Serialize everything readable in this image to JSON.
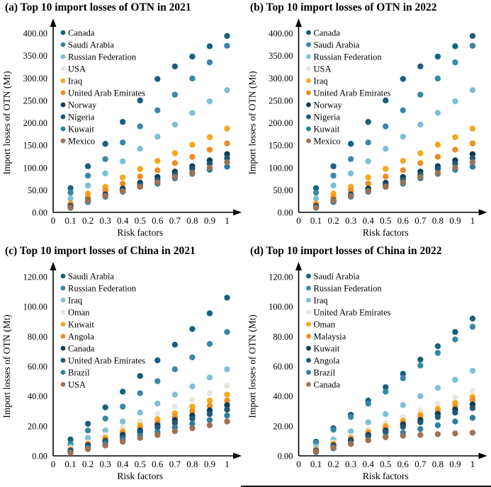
{
  "figure": {
    "background": "#ffffff",
    "border_color": "#151515"
  },
  "chart_data": [
    {
      "id": "a",
      "type": "scatter",
      "title": "(a) Top 10 import losses of OTN in 2021",
      "xlabel": "Risk factors",
      "ylabel": "Import losses of OTN (Mt)",
      "grid": false,
      "legend_position": "top-left",
      "x": [
        0.1,
        0.2,
        0.3,
        0.4,
        0.5,
        0.6,
        0.7,
        0.8,
        0.9,
        1.0
      ],
      "xticks": [
        "0",
        "0.1",
        "0.2",
        "0.3",
        "0.4",
        "0.5",
        "0.6",
        "0.7",
        "0.8",
        "0.9",
        "1"
      ],
      "ylim": [
        0,
        400
      ],
      "yticks": [
        "0.00",
        "50.00",
        "100.00",
        "150.00",
        "200.00",
        "250.00",
        "300.00",
        "350.00",
        "400.00"
      ],
      "series": [
        {
          "name": "Canada",
          "color": "#17607C",
          "values": [
            54,
            103,
            153,
            202,
            250,
            298,
            326,
            348,
            371,
            394
          ]
        },
        {
          "name": "Saudi Arabia",
          "color": "#3A87A5",
          "values": [
            44,
            82,
            119,
            156,
            192,
            228,
            263,
            299,
            335,
            372
          ]
        },
        {
          "name": "Russian Federation",
          "color": "#7EBFD3",
          "values": [
            31,
            60,
            87,
            114,
            142,
            169,
            196,
            222,
            248,
            273
          ]
        },
        {
          "name": "USA",
          "color": "#EAE6DE",
          "values": [
            12,
            24,
            36,
            48,
            60,
            71,
            83,
            94,
            106,
            117
          ]
        },
        {
          "name": "Iraq",
          "color": "#F5A81C",
          "values": [
            20,
            42,
            57,
            78,
            97,
            115,
            132,
            151,
            168,
            187
          ]
        },
        {
          "name": "United Arab Emirates",
          "color": "#EF8C22",
          "values": [
            17,
            33,
            49,
            64,
            80,
            94,
            110,
            124,
            140,
            154
          ]
        },
        {
          "name": "Norway",
          "color": "#0E3B53",
          "values": [
            14,
            27,
            40,
            53,
            66,
            79,
            91,
            103,
            116,
            130
          ]
        },
        {
          "name": "Nigeria",
          "color": "#1E5876",
          "values": [
            12,
            25,
            37,
            49,
            61,
            73,
            85,
            97,
            109,
            121
          ]
        },
        {
          "name": "Kuwait",
          "color": "#2F7E9E",
          "values": [
            10,
            23,
            35,
            46,
            57,
            64,
            76,
            86,
            95,
            102
          ]
        },
        {
          "name": "Mexico",
          "color": "#9C7257",
          "values": [
            11,
            26,
            37,
            47,
            57,
            67,
            79,
            88,
            100,
            112
          ]
        }
      ]
    },
    {
      "id": "b",
      "type": "scatter",
      "title": "(b) Top 10 import losses of OTN in 2022",
      "xlabel": "Risk factors",
      "ylabel": "Import losses of OTN (Mt)",
      "grid": false,
      "legend_position": "top-left",
      "x": [
        0.1,
        0.2,
        0.3,
        0.4,
        0.5,
        0.6,
        0.7,
        0.8,
        0.9,
        1.0
      ],
      "xticks": [
        "0",
        "0.1",
        "0.2",
        "0.3",
        "0.4",
        "0.5",
        "0.6",
        "0.7",
        "0.8",
        "0.9",
        "1"
      ],
      "ylim": [
        0,
        400
      ],
      "yticks": [
        "0.00",
        "50.00",
        "100.00",
        "150.00",
        "200.00",
        "250.00",
        "300.00",
        "350.00",
        "400.00"
      ],
      "series": [
        {
          "name": "Canada",
          "color": "#17607C",
          "values": [
            54,
            103,
            153,
            202,
            250,
            298,
            326,
            348,
            371,
            394
          ]
        },
        {
          "name": "Saudi Arabia",
          "color": "#3A87A5",
          "values": [
            44,
            82,
            119,
            156,
            192,
            228,
            263,
            299,
            335,
            372
          ]
        },
        {
          "name": "Russian Federation",
          "color": "#7EBFD3",
          "values": [
            31,
            60,
            87,
            114,
            142,
            169,
            196,
            222,
            248,
            273
          ]
        },
        {
          "name": "USA",
          "color": "#EAE6DE",
          "values": [
            12,
            24,
            36,
            48,
            60,
            71,
            83,
            94,
            106,
            117
          ]
        },
        {
          "name": "Iraq",
          "color": "#F5A81C",
          "values": [
            20,
            42,
            57,
            78,
            97,
            115,
            132,
            151,
            168,
            187
          ]
        },
        {
          "name": "United Arab Emirates",
          "color": "#EF8C22",
          "values": [
            17,
            33,
            49,
            64,
            80,
            94,
            110,
            124,
            140,
            154
          ]
        },
        {
          "name": "Norway",
          "color": "#0E3B53",
          "values": [
            14,
            27,
            40,
            53,
            66,
            79,
            91,
            103,
            116,
            130
          ]
        },
        {
          "name": "Nigeria",
          "color": "#1E5876",
          "values": [
            12,
            25,
            37,
            49,
            61,
            73,
            85,
            97,
            109,
            121
          ]
        },
        {
          "name": "Kuwait",
          "color": "#2F7E9E",
          "values": [
            10,
            23,
            35,
            46,
            57,
            64,
            76,
            86,
            95,
            102
          ]
        },
        {
          "name": "Mexico",
          "color": "#9C7257",
          "values": [
            11,
            26,
            37,
            47,
            57,
            67,
            79,
            88,
            100,
            112
          ]
        }
      ]
    },
    {
      "id": "c",
      "type": "scatter",
      "title": "(c) Top 10 import losses of China in 2021",
      "xlabel": "Risk factors",
      "ylabel": "Import losses of OTN (Mt)",
      "grid": false,
      "legend_position": "top-left",
      "x": [
        0.1,
        0.2,
        0.3,
        0.4,
        0.5,
        0.6,
        0.7,
        0.8,
        0.9,
        1.0
      ],
      "xticks": [
        "0",
        "0.1",
        "0.2",
        "0.3",
        "0.4",
        "0.5",
        "0.6",
        "0.7",
        "0.8",
        "0.9",
        "1"
      ],
      "ylim": [
        0,
        120
      ],
      "yticks": [
        "0.00",
        "20.00",
        "40.00",
        "60.00",
        "80.00",
        "100.00",
        "120.00"
      ],
      "series": [
        {
          "name": "Saudi Arabia",
          "color": "#17607C",
          "values": [
            11,
            21.5,
            32.5,
            43,
            53.5,
            64,
            74.5,
            85,
            95.5,
            106
          ]
        },
        {
          "name": "Russian Federation",
          "color": "#3A87A5",
          "values": [
            8,
            17,
            25,
            33,
            42,
            50,
            58,
            66,
            75,
            83
          ]
        },
        {
          "name": "Iraq",
          "color": "#7EBFD3",
          "values": [
            6,
            12,
            17,
            23,
            29,
            35,
            41,
            46.5,
            52.5,
            58
          ]
        },
        {
          "name": "Oman",
          "color": "#EAE6DE",
          "values": [
            5,
            9,
            14,
            19,
            23,
            28,
            33,
            37.5,
            42,
            47
          ]
        },
        {
          "name": "Kuwait",
          "color": "#F5A81C",
          "values": [
            4,
            8,
            12,
            16.5,
            20.5,
            24.5,
            28.5,
            33,
            37,
            41
          ]
        },
        {
          "name": "Angola",
          "color": "#EF8C22",
          "values": [
            4,
            7.5,
            11,
            15,
            18.5,
            22,
            26,
            30,
            33.5,
            37
          ]
        },
        {
          "name": "Canada",
          "color": "#0E3B53",
          "values": [
            3.5,
            7,
            10,
            14,
            17,
            20.5,
            24,
            27,
            30.5,
            34
          ]
        },
        {
          "name": "United Arab Emirates",
          "color": "#1E5876",
          "values": [
            3,
            6,
            9.5,
            12.5,
            16,
            19,
            22,
            25,
            28,
            31
          ]
        },
        {
          "name": "Brazil",
          "color": "#2F7E9E",
          "values": [
            2.5,
            5.5,
            8,
            11,
            13.5,
            16,
            19,
            21.5,
            24,
            27
          ]
        },
        {
          "name": "USA",
          "color": "#9C7257",
          "values": [
            2,
            4.5,
            7,
            9.5,
            12,
            14,
            16.5,
            18.5,
            20.5,
            23
          ]
        }
      ]
    },
    {
      "id": "d",
      "type": "scatter",
      "title": "(d) Top 10 import losses of China in 2022",
      "xlabel": "Risk factors",
      "ylabel": "Import losses of OTN (Mt)",
      "grid": false,
      "legend_position": "top-left",
      "x": [
        0.1,
        0.2,
        0.3,
        0.4,
        0.5,
        0.6,
        0.7,
        0.8,
        0.9,
        1.0
      ],
      "xticks": [
        "0",
        "0.1",
        "0.2",
        "0.3",
        "0.4",
        "0.5",
        "0.6",
        "0.7",
        "0.8",
        "0.9",
        "1"
      ],
      "ylim": [
        0,
        120
      ],
      "yticks": [
        "0.00",
        "20.00",
        "40.00",
        "60.00",
        "80.00",
        "100.00",
        "120.00"
      ],
      "series": [
        {
          "name": "Saudi Arabia",
          "color": "#17607C",
          "values": [
            9.5,
            18.5,
            27.5,
            37,
            46,
            55,
            64.5,
            73.5,
            83,
            92
          ]
        },
        {
          "name": "Russian Federation",
          "color": "#3A87A5",
          "values": [
            9,
            17.5,
            26,
            35,
            43,
            52,
            60.5,
            69,
            78,
            86.5
          ]
        },
        {
          "name": "Iraq",
          "color": "#7EBFD3",
          "values": [
            6,
            11,
            16.5,
            22.5,
            28,
            34,
            40,
            45.5,
            51,
            57
          ]
        },
        {
          "name": "United Arab Emirates",
          "color": "#EAE6DE",
          "values": [
            4.5,
            9,
            13,
            17.5,
            22,
            26,
            30.5,
            35,
            39,
            43.5
          ]
        },
        {
          "name": "Oman",
          "color": "#F5A81C",
          "values": [
            4,
            8,
            12,
            16,
            20,
            23.5,
            27.5,
            31.5,
            35.5,
            39.5
          ]
        },
        {
          "name": "Malaysia",
          "color": "#EF8C22",
          "values": [
            4,
            7.5,
            11,
            15,
            18.5,
            22,
            26,
            29.5,
            33,
            37.5
          ]
        },
        {
          "name": "Kuwait",
          "color": "#0E3B53",
          "values": [
            3.5,
            7,
            10.5,
            14,
            17,
            21,
            24,
            28,
            31,
            34.5
          ]
        },
        {
          "name": "Angola",
          "color": "#1E5876",
          "values": [
            3,
            6.5,
            10,
            13,
            16,
            19.5,
            22.5,
            26,
            29,
            32
          ]
        },
        {
          "name": "Brazil",
          "color": "#2F7E9E",
          "values": [
            2.5,
            5,
            8,
            10.5,
            13,
            15.5,
            18,
            20.5,
            23,
            25.5
          ]
        },
        {
          "name": "Canada",
          "color": "#9C7257",
          "values": [
            3,
            5.5,
            8,
            10.5,
            12.5,
            13.5,
            14,
            14.5,
            15,
            15.5
          ]
        }
      ]
    }
  ]
}
